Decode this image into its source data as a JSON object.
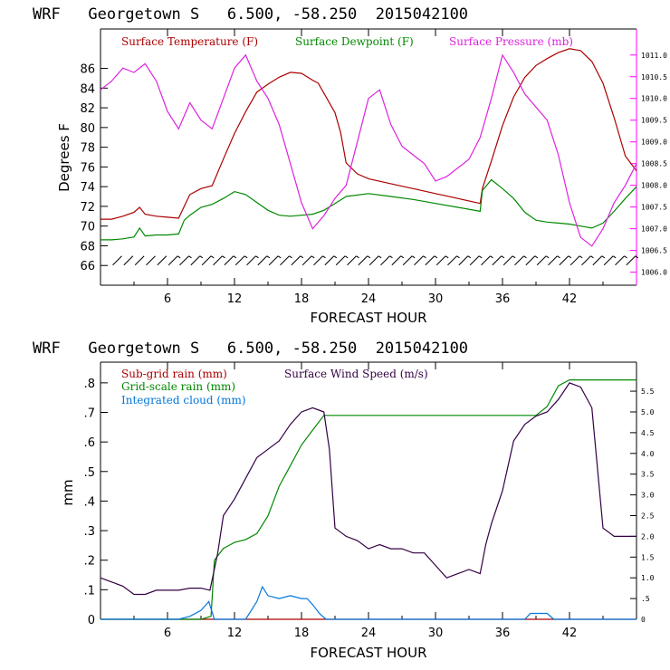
{
  "chart_data": [
    {
      "type": "line",
      "title": "WRF   Georgetown S   6.500, -58.250  2015042100",
      "xlabel": "FORECAST HOUR",
      "ylabel": "Degrees F",
      "xlim": [
        0,
        48
      ],
      "ylim": [
        64,
        90
      ],
      "right_ylim": [
        1005.7,
        1011.6
      ],
      "xticks": [
        "6",
        "12",
        "18",
        "24",
        "30",
        "36",
        "42"
      ],
      "xtick_values": [
        6,
        12,
        18,
        24,
        30,
        36,
        42
      ],
      "yticks": [
        "66",
        "68",
        "70",
        "72",
        "74",
        "76",
        "78",
        "80",
        "82",
        "84",
        "86"
      ],
      "ytick_values": [
        66,
        68,
        70,
        72,
        74,
        76,
        78,
        80,
        82,
        84,
        86
      ],
      "right_yticks": [
        "1006.0",
        "1006.5",
        "1007.0",
        "1007.5",
        "1008.0",
        "1008.5",
        "1009.0",
        "1009.5",
        "1010.0",
        "1010.5",
        "1011.0"
      ],
      "right_ytick_values": [
        1006.0,
        1006.5,
        1007.0,
        1007.5,
        1008.0,
        1008.5,
        1009.0,
        1009.5,
        1010.0,
        1010.5,
        1011.0
      ],
      "axis_color": "#ff00ff",
      "legend_position": "top",
      "series": [
        {
          "name": "Surface Temperature (F)",
          "color": "#aa0000",
          "axis": "left",
          "x": [
            0,
            1,
            2,
            3,
            3.5,
            4,
            5,
            6,
            7,
            7.5,
            8,
            9,
            10,
            11,
            12,
            13,
            14,
            15,
            16,
            17,
            18,
            19,
            19.5,
            20,
            21,
            21.5,
            22,
            23,
            24,
            26,
            28,
            30,
            32,
            34,
            34.2,
            35,
            36,
            37,
            38,
            39,
            40,
            41,
            42,
            43,
            44,
            45,
            46,
            47,
            48
          ],
          "y": [
            70.7,
            70.7,
            71.0,
            71.4,
            71.9,
            71.2,
            71.0,
            70.9,
            70.8,
            72.0,
            73.2,
            73.8,
            74.1,
            76.8,
            79.4,
            81.6,
            83.6,
            84.4,
            85.1,
            85.6,
            85.5,
            84.8,
            84.5,
            83.5,
            81.5,
            79.5,
            76.4,
            75.3,
            74.8,
            74.3,
            73.8,
            73.3,
            72.8,
            72.3,
            73.8,
            76.6,
            80.2,
            83.1,
            85.1,
            86.3,
            87.0,
            87.6,
            88.0,
            87.8,
            86.7,
            84.5,
            81.0,
            77.1,
            75.6
          ]
        },
        {
          "name": "Surface Dewpoint (F)",
          "color": "#008800",
          "axis": "left",
          "x": [
            0,
            1,
            2,
            3,
            3.5,
            4,
            5,
            6,
            7,
            7.5,
            8,
            9,
            10,
            11,
            12,
            13,
            14,
            15,
            16,
            17,
            18,
            19,
            20,
            21,
            22,
            24,
            26,
            28,
            30,
            32,
            34,
            34.2,
            35,
            36,
            37,
            38,
            39,
            40,
            41,
            42,
            43,
            44,
            45,
            46,
            47,
            48
          ],
          "y": [
            68.6,
            68.6,
            68.7,
            68.9,
            69.8,
            69.0,
            69.1,
            69.1,
            69.2,
            70.6,
            71.1,
            71.9,
            72.2,
            72.8,
            73.5,
            73.2,
            72.4,
            71.6,
            71.1,
            71.0,
            71.1,
            71.2,
            71.6,
            72.3,
            73.0,
            73.3,
            73.0,
            72.7,
            72.3,
            71.9,
            71.5,
            73.6,
            74.7,
            73.8,
            72.8,
            71.4,
            70.6,
            70.4,
            70.3,
            70.2,
            70.0,
            69.8,
            70.3,
            71.5,
            72.8,
            74.0
          ]
        },
        {
          "name": "Surface Pressure (mb)",
          "color": "#dd22dd",
          "axis": "right",
          "x": [
            0,
            1,
            2,
            3,
            4,
            5,
            6,
            7,
            8,
            9,
            10,
            11,
            12,
            13,
            14,
            15,
            16,
            17,
            18,
            19,
            20,
            21,
            22,
            23,
            24,
            25,
            26,
            27,
            28,
            29,
            30,
            31,
            32,
            33,
            34,
            35,
            36,
            37,
            38,
            39,
            40,
            41,
            42,
            43,
            44,
            45,
            46,
            47,
            48
          ],
          "y": [
            1010.2,
            1010.4,
            1010.7,
            1010.6,
            1010.8,
            1010.4,
            1009.7,
            1009.3,
            1009.9,
            1009.5,
            1009.3,
            1010.0,
            1010.7,
            1011.0,
            1010.4,
            1010.0,
            1009.4,
            1008.5,
            1007.6,
            1007.0,
            1007.3,
            1007.7,
            1008.0,
            1009.0,
            1010.0,
            1010.2,
            1009.4,
            1008.9,
            1008.7,
            1008.5,
            1008.1,
            1008.2,
            1008.4,
            1008.6,
            1009.1,
            1010.0,
            1011.0,
            1010.6,
            1010.1,
            1009.8,
            1009.5,
            1008.7,
            1007.6,
            1006.8,
            1006.6,
            1007.0,
            1007.6,
            1008.0,
            1008.5
          ]
        }
      ],
      "wind_barbs": {
        "x_start": 1.5,
        "x_end": 47.5,
        "level": 66.5
      }
    },
    {
      "type": "line",
      "title": "WRF   Georgetown S   6.500, -58.250  2015042100",
      "xlabel": "FORECAST HOUR",
      "ylabel": "mm",
      "xlim": [
        0,
        48
      ],
      "ylim": [
        0,
        0.87
      ],
      "right_ylim": [
        0,
        6.2
      ],
      "xticks": [
        "6",
        "12",
        "18",
        "24",
        "30",
        "36",
        "42"
      ],
      "xtick_values": [
        6,
        12,
        18,
        24,
        30,
        36,
        42
      ],
      "yticks": [
        "0",
        ".1",
        ".2",
        ".3",
        ".4",
        ".5",
        ".6",
        ".7",
        ".8"
      ],
      "ytick_values": [
        0,
        0.1,
        0.2,
        0.3,
        0.4,
        0.5,
        0.6,
        0.7,
        0.8
      ],
      "right_yticks": [
        "0",
        ".5",
        "1.0",
        "1.5",
        "2.0",
        "2.5",
        "3.0",
        "3.5",
        "4.0",
        "4.5",
        "5.0",
        "5.5"
      ],
      "right_ytick_values": [
        0,
        0.5,
        1.0,
        1.5,
        2.0,
        2.5,
        3.0,
        3.5,
        4.0,
        4.5,
        5.0,
        5.5
      ],
      "legend_position": "top",
      "series": [
        {
          "name": "Sub-grid rain (mm)",
          "color": "#aa0000",
          "axis": "left",
          "x": [
            0,
            48
          ],
          "y": [
            0,
            0
          ]
        },
        {
          "name": "Grid-scale rain (mm)",
          "color": "#008800",
          "axis": "left",
          "x": [
            0,
            9,
            9.9,
            10.2,
            11,
            12,
            13,
            14,
            15,
            16,
            17,
            18,
            19,
            20,
            25,
            30,
            35,
            39,
            40,
            41,
            42,
            43,
            48
          ],
          "y": [
            0,
            0,
            0.01,
            0.2,
            0.24,
            0.26,
            0.27,
            0.29,
            0.35,
            0.45,
            0.52,
            0.59,
            0.64,
            0.69,
            0.69,
            0.69,
            0.69,
            0.69,
            0.72,
            0.79,
            0.81,
            0.81,
            0.81
          ]
        },
        {
          "name": "Integrated cloud (mm)",
          "color": "#0077dd",
          "axis": "left",
          "x": [
            0,
            7,
            8,
            9,
            9.7,
            10.2,
            11,
            13,
            14,
            14.5,
            15,
            16,
            17,
            18,
            18.5,
            19,
            19.6,
            20.2,
            38,
            38.5,
            40,
            40.6,
            48
          ],
          "y": [
            0,
            0,
            0.01,
            0.03,
            0.06,
            0,
            0,
            0,
            0.06,
            0.11,
            0.08,
            0.07,
            0.08,
            0.07,
            0.07,
            0.05,
            0.02,
            0,
            0,
            0.02,
            0.02,
            0,
            0
          ]
        },
        {
          "name": "Surface Wind Speed (m/s)",
          "color": "#330044",
          "axis": "right",
          "x": [
            0,
            1,
            2,
            3,
            4,
            5,
            6,
            7,
            8,
            9,
            9.8,
            10.5,
            11,
            12,
            13,
            14,
            15,
            16,
            17,
            18,
            19,
            20,
            20.5,
            21,
            21.5,
            22,
            23,
            24,
            25,
            26,
            27,
            28,
            29,
            30,
            31,
            32,
            33,
            34,
            34.5,
            35,
            36,
            37,
            38,
            39,
            40,
            41,
            42,
            43,
            44,
            45,
            46,
            47,
            48
          ],
          "y": [
            1.0,
            0.9,
            0.8,
            0.6,
            0.6,
            0.7,
            0.7,
            0.7,
            0.75,
            0.75,
            0.7,
            1.6,
            2.5,
            2.9,
            3.4,
            3.9,
            4.1,
            4.3,
            4.7,
            5.0,
            5.1,
            5.0,
            4.1,
            2.2,
            2.1,
            2.0,
            1.9,
            1.7,
            1.8,
            1.7,
            1.7,
            1.6,
            1.6,
            1.3,
            1.0,
            1.1,
            1.2,
            1.1,
            1.8,
            2.3,
            3.1,
            4.3,
            4.7,
            4.9,
            5.0,
            5.3,
            5.7,
            5.6,
            5.1,
            2.2,
            2.0,
            2.0,
            2.0
          ]
        }
      ]
    }
  ]
}
